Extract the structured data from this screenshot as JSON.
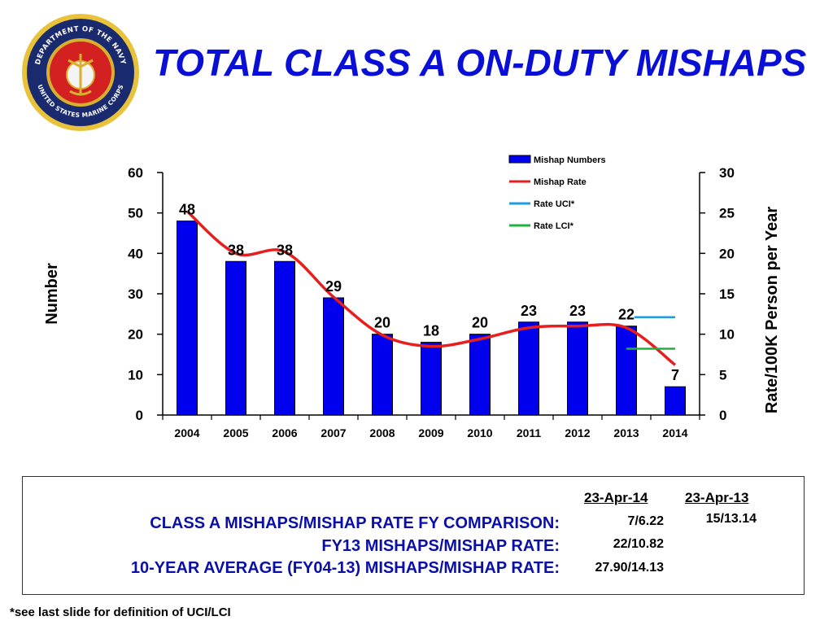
{
  "seal": {
    "top_text": "DEPARTMENT OF THE NAVY",
    "bottom_text": "UNITED STATES MARINE CORPS"
  },
  "title": "TOTAL CLASS A ON-DUTY  MISHAPS",
  "chart_data": {
    "type": "bar",
    "categories": [
      "2004",
      "2005",
      "2006",
      "2007",
      "2008",
      "2009",
      "2010",
      "2011",
      "2012",
      "2013",
      "2014"
    ],
    "series": [
      {
        "name": "Mishap Numbers",
        "kind": "bar",
        "axis": "left",
        "color": "#0000ee",
        "values": [
          48,
          38,
          38,
          29,
          20,
          18,
          20,
          23,
          23,
          22,
          7
        ]
      },
      {
        "name": "Mishap Rate",
        "kind": "line",
        "axis": "right",
        "color": "#e61e1e",
        "values": [
          25.2,
          20.0,
          20.2,
          14.6,
          9.9,
          8.5,
          9.4,
          10.8,
          11.0,
          10.8,
          6.2
        ]
      },
      {
        "name": "Rate UCI*",
        "kind": "segment",
        "axis": "right",
        "color": "#1e9ce6",
        "x_range": [
          "2013",
          "2014"
        ],
        "value": 12.1
      },
      {
        "name": "Rate LCI*",
        "kind": "segment",
        "axis": "right",
        "color": "#1eb43c",
        "x_range": [
          "2013",
          "2014"
        ],
        "value": 8.2
      }
    ],
    "ylabel": "Number",
    "y2label": "Rate/100K Person per Year",
    "ylim": [
      0,
      60
    ],
    "yticks": [
      0,
      10,
      20,
      30,
      40,
      50,
      60
    ],
    "y2lim": [
      0,
      30
    ],
    "y2ticks": [
      0,
      5,
      10,
      15,
      20,
      25,
      30
    ],
    "data_labels": [
      "48",
      "38",
      "38",
      "29",
      "20",
      "18",
      "20",
      "23",
      "23",
      "22",
      "7"
    ],
    "legend_position": "top-right",
    "grid": false
  },
  "summary": {
    "labels": [
      "CLASS A MISHAPS/MISHAP RATE FY COMPARISON:",
      "FY13 MISHAPS/MISHAP RATE:",
      "10-YEAR AVERAGE (FY04-13) MISHAPS/MISHAP RATE:"
    ],
    "col1_header": "23-Apr-14",
    "col2_header": "23-Apr-13",
    "col1_values": [
      "7/6.22",
      "22/10.82",
      "27.90/14.13"
    ],
    "col2_values": [
      "15/13.14"
    ]
  },
  "footnote": "*see last slide for definition of UCI/LCI"
}
